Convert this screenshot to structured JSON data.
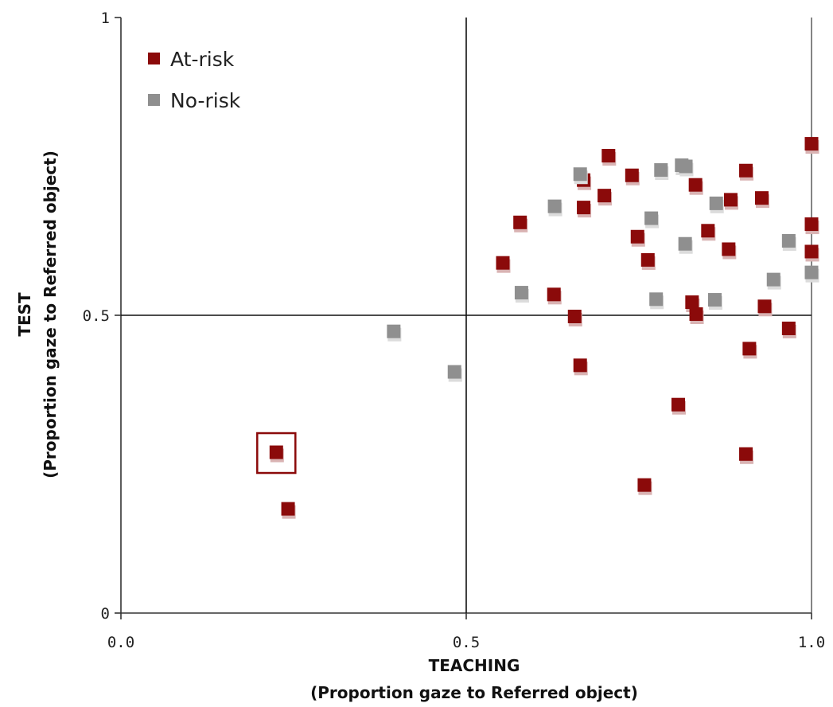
{
  "chart_data": {
    "type": "scatter",
    "title": "",
    "xlabel": "TEACHING",
    "xlabel_sub": "(Proportion gaze to Referred object)",
    "ylabel": "TEST",
    "ylabel_sub": "(Proportion gaze to Referred object)",
    "xlim": [
      0,
      1
    ],
    "ylim": [
      0,
      1
    ],
    "x_ticks": [
      {
        "value": 0,
        "label": "0.0"
      },
      {
        "value": 0.5,
        "label": "0.5"
      },
      {
        "value": 1,
        "label": "1.0"
      }
    ],
    "y_ticks": [
      {
        "value": 0,
        "label": "0"
      },
      {
        "value": 0.5,
        "label": "0.5"
      },
      {
        "value": 1,
        "label": "1"
      }
    ],
    "reference_lines": {
      "x": 0.5,
      "y": 0.5
    },
    "grid": false,
    "legend_position": "top-left",
    "series": [
      {
        "name": "At-risk",
        "color": "#8b0a0a",
        "points": [
          [
            0.225,
            0.27
          ],
          [
            0.242,
            0.175
          ],
          [
            0.553,
            0.588
          ],
          [
            0.578,
            0.656
          ],
          [
            0.627,
            0.535
          ],
          [
            0.657,
            0.498
          ],
          [
            0.665,
            0.416
          ],
          [
            0.67,
            0.681
          ],
          [
            0.67,
            0.727
          ],
          [
            0.7,
            0.701
          ],
          [
            0.706,
            0.768
          ],
          [
            0.74,
            0.735
          ],
          [
            0.748,
            0.632
          ],
          [
            0.763,
            0.593
          ],
          [
            0.758,
            0.215
          ],
          [
            0.807,
            0.35
          ],
          [
            0.827,
            0.522
          ],
          [
            0.833,
            0.502
          ],
          [
            0.832,
            0.719
          ],
          [
            0.85,
            0.642
          ],
          [
            0.88,
            0.611
          ],
          [
            0.883,
            0.694
          ],
          [
            0.905,
            0.743
          ],
          [
            0.905,
            0.267
          ],
          [
            0.91,
            0.444
          ],
          [
            0.928,
            0.697
          ],
          [
            0.932,
            0.515
          ],
          [
            0.967,
            0.478
          ],
          [
            1.0,
            0.788
          ],
          [
            1.0,
            0.653
          ],
          [
            1.0,
            0.607
          ]
        ]
      },
      {
        "name": "No-risk",
        "color": "#8f8f8f",
        "points": [
          [
            0.395,
            0.473
          ],
          [
            0.483,
            0.405
          ],
          [
            0.58,
            0.538
          ],
          [
            0.628,
            0.683
          ],
          [
            0.665,
            0.737
          ],
          [
            0.768,
            0.663
          ],
          [
            0.775,
            0.527
          ],
          [
            0.782,
            0.744
          ],
          [
            0.812,
            0.752
          ],
          [
            0.818,
            0.75
          ],
          [
            0.817,
            0.62
          ],
          [
            0.862,
            0.688
          ],
          [
            0.86,
            0.526
          ],
          [
            0.945,
            0.56
          ],
          [
            0.967,
            0.625
          ],
          [
            1.0,
            0.572
          ]
        ]
      }
    ],
    "highlight_box": {
      "x": 0.225,
      "y": 0.27
    }
  }
}
